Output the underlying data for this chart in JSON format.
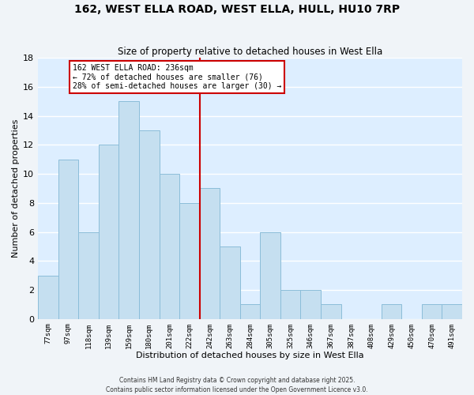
{
  "title": "162, WEST ELLA ROAD, WEST ELLA, HULL, HU10 7RP",
  "subtitle": "Size of property relative to detached houses in West Ella",
  "xlabel": "Distribution of detached houses by size in West Ella",
  "ylabel": "Number of detached properties",
  "bar_labels": [
    "77sqm",
    "97sqm",
    "118sqm",
    "139sqm",
    "159sqm",
    "180sqm",
    "201sqm",
    "222sqm",
    "242sqm",
    "263sqm",
    "284sqm",
    "305sqm",
    "325sqm",
    "346sqm",
    "367sqm",
    "387sqm",
    "408sqm",
    "429sqm",
    "450sqm",
    "470sqm",
    "491sqm"
  ],
  "bar_values": [
    3,
    11,
    6,
    12,
    15,
    13,
    10,
    8,
    9,
    5,
    1,
    6,
    2,
    2,
    1,
    0,
    0,
    1,
    0,
    1,
    1
  ],
  "bar_color": "#c5dff0",
  "bar_edge_color": "#8bbdd9",
  "plot_bg_color": "#ddeeff",
  "fig_bg_color": "#f0f4f8",
  "grid_color": "#ffffff",
  "vline_color": "#cc0000",
  "vline_x_idx": 7.5,
  "annotation_text": "162 WEST ELLA ROAD: 236sqm\n← 72% of detached houses are smaller (76)\n28% of semi-detached houses are larger (30) →",
  "ylim": [
    0,
    18
  ],
  "yticks": [
    0,
    2,
    4,
    6,
    8,
    10,
    12,
    14,
    16,
    18
  ],
  "footer1": "Contains HM Land Registry data © Crown copyright and database right 2025.",
  "footer2": "Contains public sector information licensed under the Open Government Licence v3.0."
}
